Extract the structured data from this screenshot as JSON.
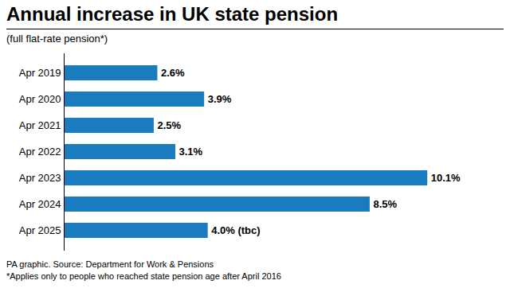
{
  "chart_data": {
    "type": "bar",
    "orientation": "horizontal",
    "title": "Annual increase in UK state pension",
    "subtitle": "(full flat-rate pension*)",
    "categories": [
      "Apr 2019",
      "Apr 2020",
      "Apr 2021",
      "Apr 2022",
      "Apr 2023",
      "Apr 2024",
      "Apr 2025"
    ],
    "values": [
      2.6,
      3.9,
      2.5,
      3.1,
      10.1,
      8.5,
      4.0
    ],
    "value_labels": [
      "2.6%",
      "3.9%",
      "2.5%",
      "3.1%",
      "10.1%",
      "8.5%",
      "4.0% (tbc)"
    ],
    "color": "#1b7bbf",
    "xlim": [
      0,
      12.0
    ],
    "grid": false,
    "data_labels": true,
    "tick_labels": "y",
    "annotations": [
      "PA graphic. Source: Department for Work & Pensions",
      "*Applies only to people who reached state pension age after April 2016"
    ]
  }
}
